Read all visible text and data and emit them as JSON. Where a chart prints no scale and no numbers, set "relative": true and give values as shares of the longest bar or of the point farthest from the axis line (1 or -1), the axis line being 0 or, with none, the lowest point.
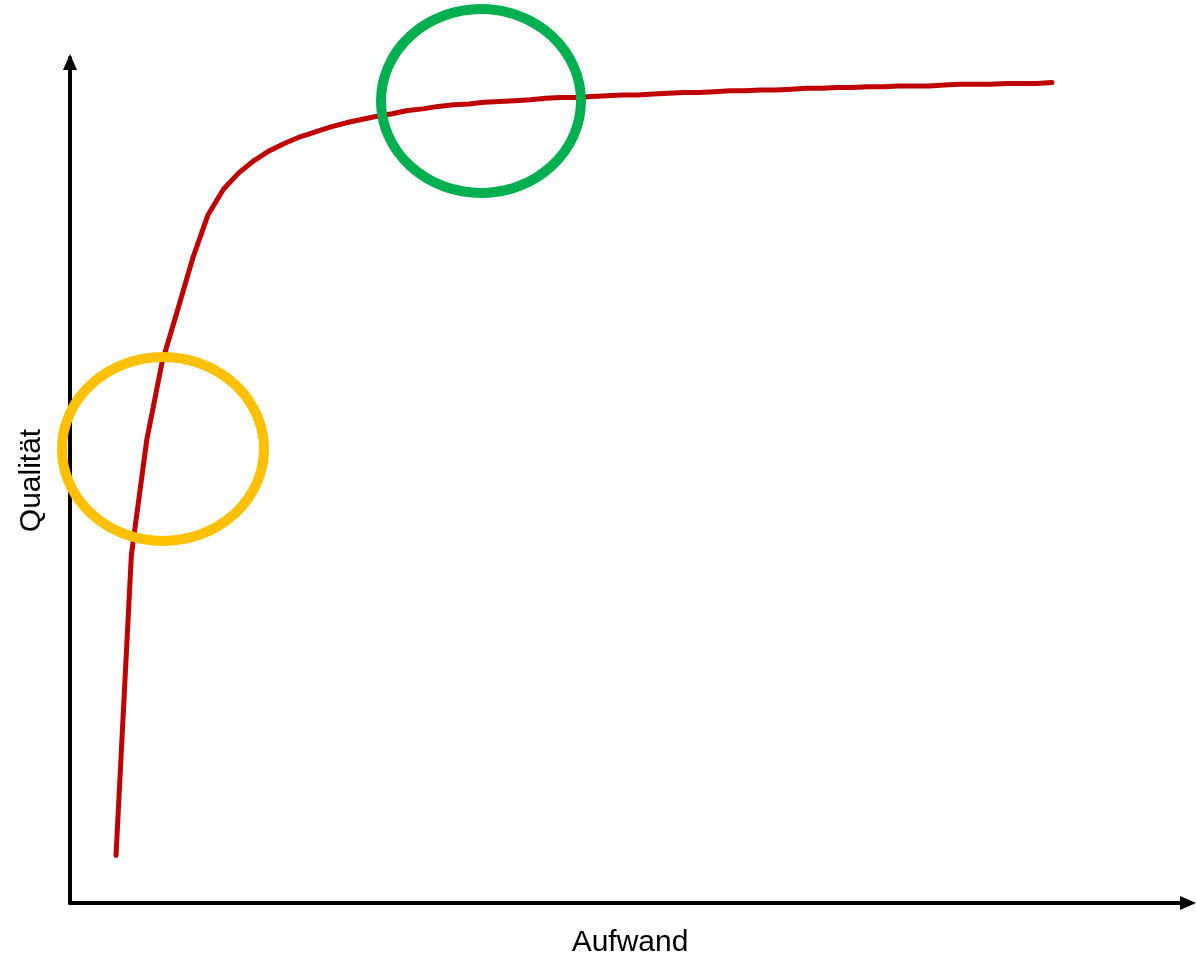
{
  "chart_data": {
    "type": "line",
    "relative": true,
    "xlabel": "Aufwand",
    "ylabel": "Qualität",
    "grid": false,
    "marker": "none",
    "line_style": "solid",
    "categories": [
      null,
      null,
      null,
      null,
      null,
      null,
      null,
      null,
      null,
      null,
      null,
      null,
      null,
      null,
      null,
      null,
      null,
      null,
      null,
      null,
      null,
      null,
      null,
      null,
      null,
      null,
      null,
      null,
      null,
      null,
      null,
      null,
      null,
      null,
      null,
      null,
      null,
      null,
      null,
      null,
      null,
      null,
      null,
      null,
      null,
      null,
      null,
      null,
      null,
      null,
      null,
      null,
      null,
      null,
      null,
      null,
      null,
      null,
      null,
      null,
      null,
      null,
      null,
      null,
      null,
      null,
      null,
      null,
      null,
      null,
      null,
      null,
      null,
      null
    ],
    "series": [
      {
        "color": "#c00000",
        "values": [
          null,
          null,
          null,
          0.058,
          0.424,
          0.564,
          0.659,
          0.722,
          0.786,
          0.839,
          0.87,
          0.89,
          0.905,
          0.917,
          0.926,
          0.934,
          0.94,
          0.946,
          0.951,
          0.955,
          0.959,
          0.962,
          0.966,
          0.968,
          0.971,
          0.973,
          0.974,
          0.976,
          0.977,
          0.978,
          0.979,
          0.981,
          0.982,
          0.982,
          0.983,
          0.984,
          0.985,
          0.985,
          0.986,
          0.987,
          0.988,
          0.988,
          0.989,
          0.99,
          0.99,
          0.991,
          0.991,
          0.992,
          0.993,
          0.993,
          0.994,
          0.994,
          0.995,
          0.995,
          0.996,
          0.996,
          0.996,
          0.997,
          0.998,
          0.998,
          0.998,
          0.999,
          0.999,
          0.999,
          1,
          null,
          null,
          null,
          null,
          null,
          null,
          null,
          null,
          null
        ]
      }
    ]
  }
}
